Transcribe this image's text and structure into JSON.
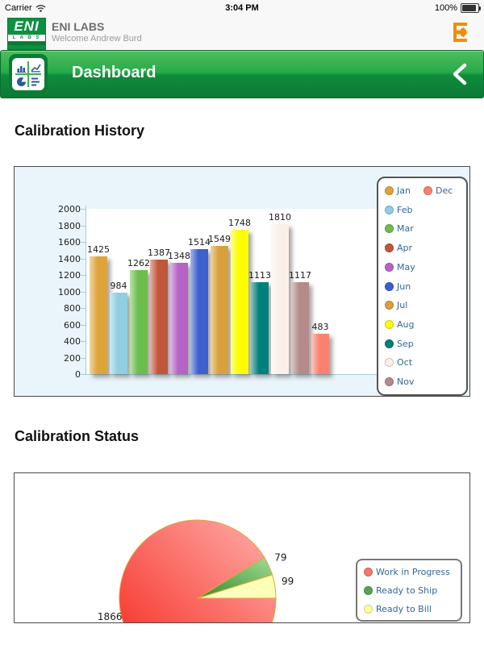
{
  "status_bar": {
    "carrier": "Carrier",
    "time": "3:04 PM",
    "battery_percent": "100%"
  },
  "header": {
    "app_title": "ENI LABS",
    "welcome": "Welcome Andrew Burd",
    "logo_top": "ENI",
    "logo_bottom": "L A B S"
  },
  "nav": {
    "title": "Dashboard"
  },
  "sections": {
    "history": "Calibration History",
    "status": "Calibration Status"
  },
  "colors": {
    "nav_green_top": "#4ebd5e",
    "nav_green_bottom": "#0c7a35",
    "accent_orange": "#EE8F0D",
    "legend_text": "#336699",
    "chart_bg": "#e9f5fb",
    "axis": "#a9cbdc"
  },
  "chart_data": [
    {
      "type": "bar",
      "title": "Calibration History",
      "categories": [
        "Jan",
        "Feb",
        "Mar",
        "Apr",
        "May",
        "Jun",
        "Jul",
        "Aug",
        "Sep",
        "Oct",
        "Nov",
        "Dec"
      ],
      "values": [
        1425,
        984,
        1262,
        1387,
        1348,
        1514,
        1549,
        1748,
        1113,
        1810,
        1117,
        483
      ],
      "bar_colors": [
        "#DFA33C",
        "#8FCFE0",
        "#6CBE4C",
        "#C0563A",
        "#B763C6",
        "#3D5FD0",
        "#D9A03B",
        "#FDFD00",
        "#00807A",
        "#FBF0E8",
        "#B58A8A",
        "#F98170"
      ],
      "xlabel": "",
      "ylabel": "",
      "ylim": [
        0,
        2000
      ],
      "ytick_step": 200,
      "grid": false,
      "legend_position": "right",
      "plot_bg": "#ffffff",
      "chart_bg": "#e9f5fb"
    },
    {
      "type": "pie",
      "title": "Calibration Status",
      "labels": [
        "Work in Progress",
        "Ready to Ship",
        "Ready to Bill"
      ],
      "values": [
        1866,
        79,
        99
      ],
      "slice_gradients": [
        [
          "#F5261B",
          "#FFB0AC"
        ],
        [
          "#2E8B2E",
          "#A5DC92"
        ],
        [
          "#FFFFC6",
          "#FFFFB0"
        ]
      ],
      "slice_stroke": "#DFA33C",
      "legend_colors": [
        "#F4796B",
        "#55A355",
        "#FFFF9E"
      ],
      "start_angle_deg": 0,
      "direction": "clockwise",
      "legend_position": "right"
    }
  ]
}
